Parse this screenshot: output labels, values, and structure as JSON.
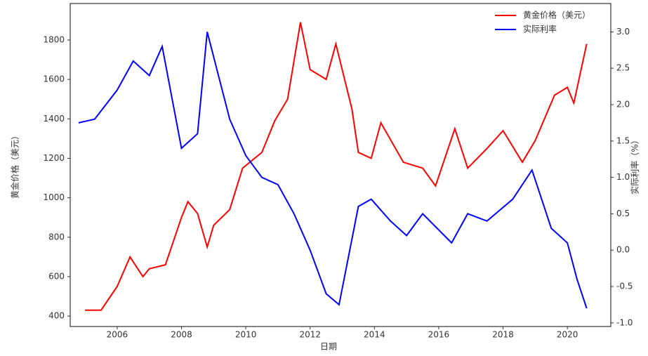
{
  "chart_data": {
    "type": "line",
    "xlabel": "日期",
    "ylabel": "黄金价格（美元）",
    "y2label": "实际利率（%）",
    "xlim": [
      2004.54,
      2021.35
    ],
    "xticks": [
      2006,
      2008,
      2010,
      2012,
      2014,
      2016,
      2018,
      2020
    ],
    "ylim": [
      347,
      1985
    ],
    "yticks": [
      400,
      600,
      800,
      1000,
      1200,
      1400,
      1600,
      1800
    ],
    "y2lim": [
      -1.05,
      3.39
    ],
    "y2ticks": [
      -1.0,
      -0.5,
      0.0,
      0.5,
      1.0,
      1.5,
      2.0,
      2.5,
      3.0
    ],
    "legend": "upper right",
    "series": [
      {
        "name": "黄金价格（美元）",
        "color": "#ff0000",
        "x": [
          2005.0,
          2005.5,
          2006.0,
          2006.4,
          2006.8,
          2007.0,
          2007.5,
          2008.0,
          2008.2,
          2008.5,
          2008.8,
          2009.0,
          2009.5,
          2009.9,
          2010.5,
          2010.9,
          2011.3,
          2011.7,
          2012.0,
          2012.5,
          2012.8,
          2013.3,
          2013.5,
          2013.9,
          2014.2,
          2014.9,
          2015.5,
          2015.9,
          2016.5,
          2016.9,
          2017.5,
          2018.0,
          2018.6,
          2019.0,
          2019.6,
          2020.0,
          2020.2,
          2020.6
        ],
        "values": [
          430,
          430,
          550,
          700,
          600,
          640,
          660,
          900,
          980,
          920,
          750,
          860,
          940,
          1150,
          1230,
          1390,
          1500,
          1890,
          1650,
          1600,
          1780,
          1450,
          1230,
          1200,
          1380,
          1180,
          1150,
          1060,
          1350,
          1150,
          1250,
          1340,
          1180,
          1290,
          1520,
          1560,
          1480,
          1780
        ]
      },
      {
        "name": "实际利率",
        "color": "#0000ff",
        "axis": "y2",
        "x": [
          2004.8,
          2005.3,
          2006.0,
          2006.5,
          2007.0,
          2007.4,
          2008.0,
          2008.5,
          2008.8,
          2009.5,
          2010.0,
          2010.5,
          2011.0,
          2011.5,
          2012.0,
          2012.5,
          2012.9,
          2013.5,
          2013.9,
          2014.5,
          2015.0,
          2015.5,
          2016.4,
          2016.9,
          2017.5,
          2018.3,
          2018.9,
          2019.5,
          2020.0,
          2020.3,
          2020.6
        ],
        "values": [
          1.75,
          1.8,
          2.2,
          2.6,
          2.4,
          2.8,
          1.4,
          1.6,
          3.0,
          1.8,
          1.3,
          1.0,
          0.9,
          0.5,
          0.0,
          -0.6,
          -0.75,
          0.6,
          0.7,
          0.4,
          0.2,
          0.5,
          0.1,
          0.5,
          0.4,
          0.7,
          1.1,
          0.3,
          0.1,
          -0.4,
          -0.8
        ]
      }
    ]
  }
}
